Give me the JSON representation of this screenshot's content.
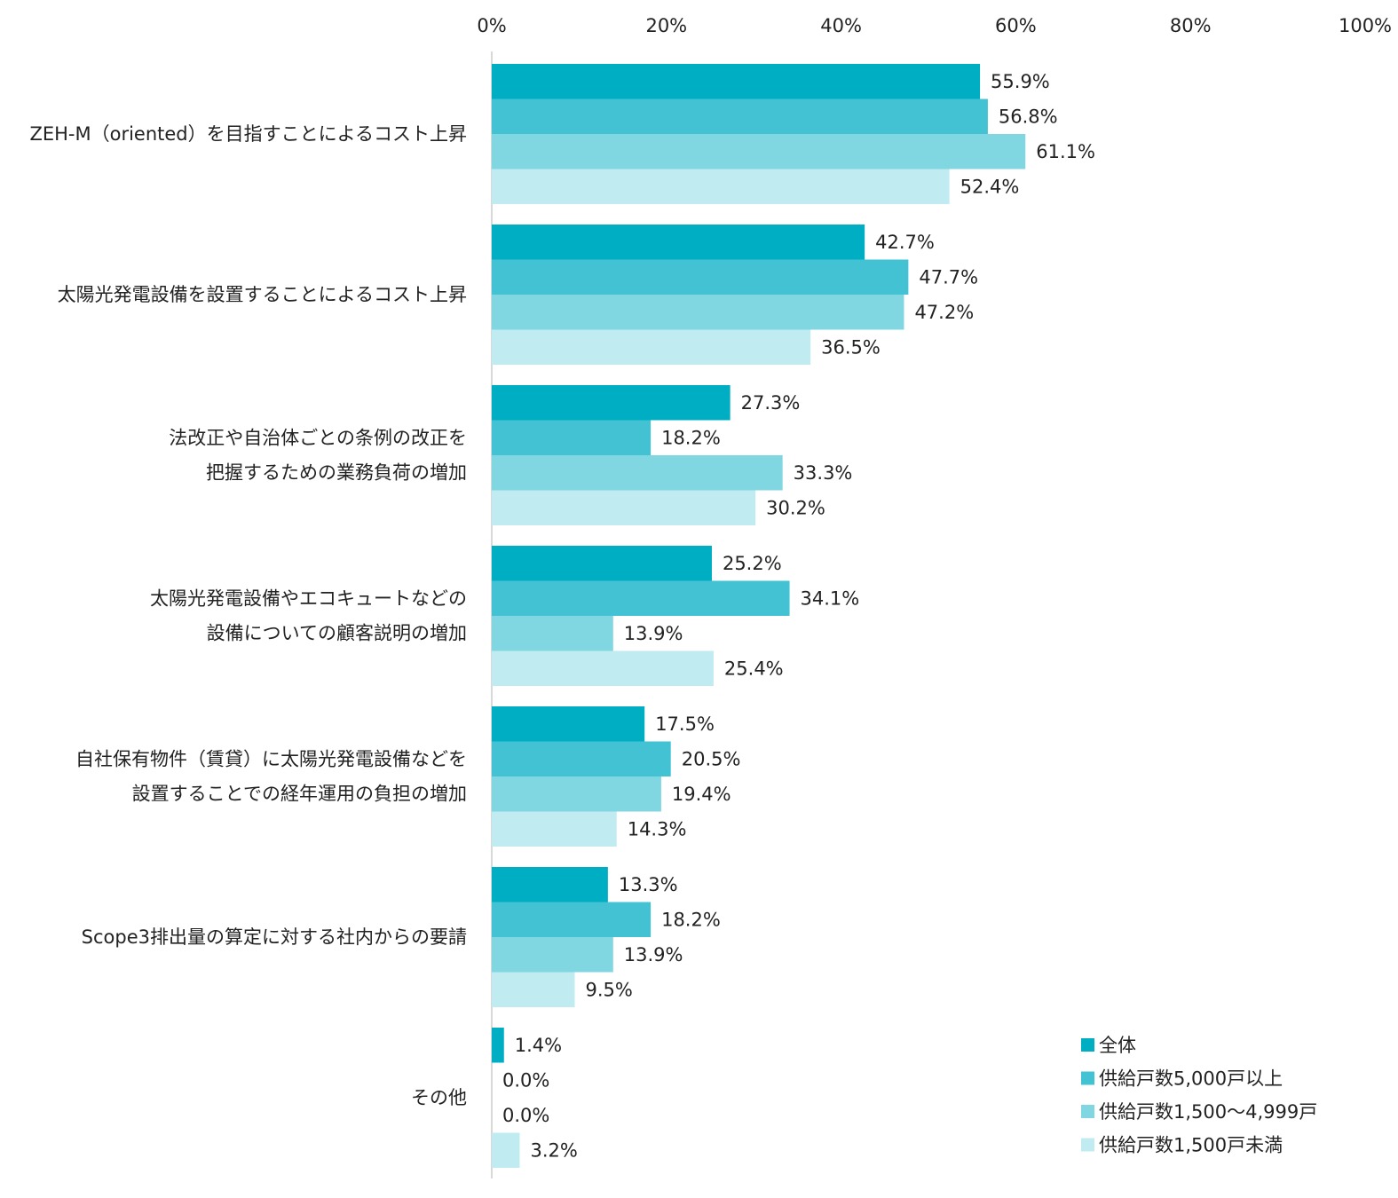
{
  "chart_data": {
    "type": "bar",
    "orientation": "horizontal",
    "xlim": [
      0,
      100
    ],
    "x_ticks": [
      "0%",
      "20%",
      "40%",
      "60%",
      "80%",
      "100%"
    ],
    "x_tick_values": [
      0,
      20,
      40,
      60,
      80,
      100
    ],
    "grid": false,
    "legend_position": "bottom-right",
    "categories": [
      [
        "ZEH-M（oriented）を目指すことによるコスト上昇"
      ],
      [
        "太陽光発電設備を設置することによるコスト上昇"
      ],
      [
        "法改正や自治体ごとの条例の改正を",
        "把握するための業務負荷の増加"
      ],
      [
        "太陽光発電設備やエコキュートなどの",
        "設備についての顧客説明の増加"
      ],
      [
        "自社保有物件（賃貸）に太陽光発電設備などを",
        "設置することでの経年運用の負担の増加"
      ],
      [
        "Scope3排出量の算定に対する社内からの要請"
      ],
      [
        "その他"
      ]
    ],
    "series": [
      {
        "name": "全体",
        "color": "#00aec4",
        "values": [
          55.9,
          42.7,
          27.3,
          25.2,
          17.5,
          13.3,
          1.4
        ]
      },
      {
        "name": "供給戸数5,000戸以上",
        "color": "#42c2d3",
        "values": [
          56.8,
          47.7,
          18.2,
          34.1,
          20.5,
          18.2,
          0.0
        ]
      },
      {
        "name": "供給戸数1,500～4,999戸",
        "color": "#80d6e1",
        "values": [
          61.1,
          47.2,
          33.3,
          13.9,
          19.4,
          13.9,
          0.0
        ]
      },
      {
        "name": "供給戸数1,500戸未満",
        "color": "#c0ebf0",
        "values": [
          52.4,
          36.5,
          30.2,
          25.4,
          14.3,
          9.5,
          3.2
        ]
      }
    ]
  }
}
